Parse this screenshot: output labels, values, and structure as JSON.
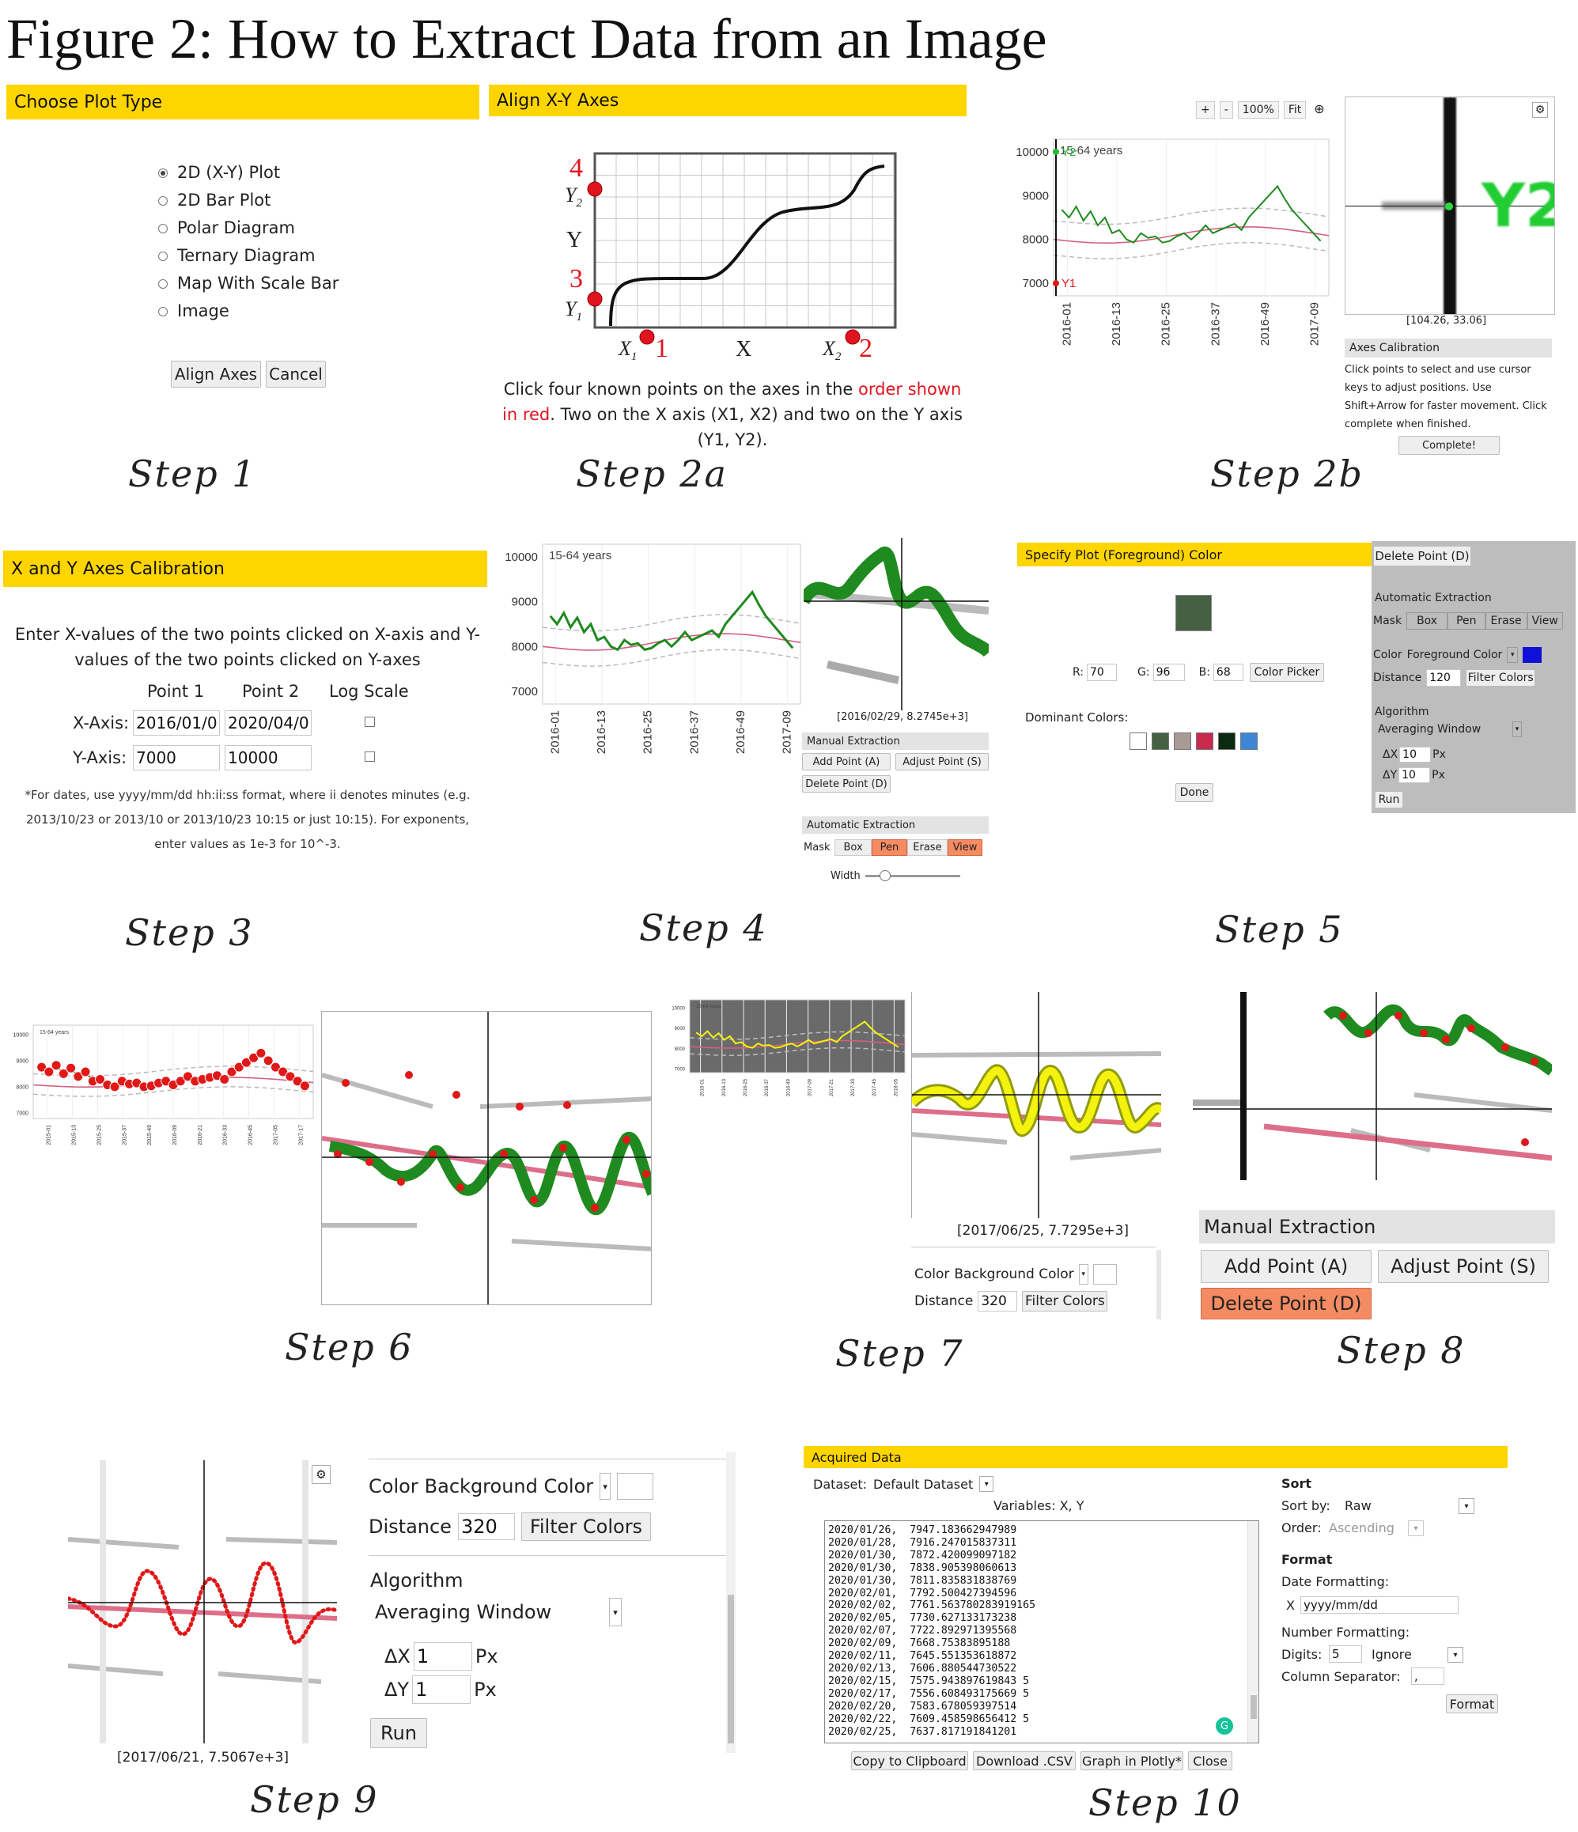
{
  "figure_title": "Figure 2: How to Extract Data from an Image",
  "steps": {
    "s1": "Step 1",
    "s2a": "Step 2a",
    "s2b": "Step 2b",
    "s3": "Step 3",
    "s4": "Step 4",
    "s5": "Step 5",
    "s6": "Step 6",
    "s7": "Step 7",
    "s8": "Step 8",
    "s9": "Step 9",
    "s10": "Step 10"
  },
  "step1": {
    "header": "Choose Plot Type",
    "options": [
      "2D (X-Y) Plot",
      "2D Bar Plot",
      "Polar Diagram",
      "Ternary Diagram",
      "Map With Scale Bar",
      "Image"
    ],
    "selected_index": 0,
    "align_label": "Align Axes",
    "cancel_label": "Cancel"
  },
  "step2a": {
    "header": "Align X-Y Axes",
    "num1": "1",
    "num2": "2",
    "num3": "3",
    "num4": "4",
    "x1": "X1",
    "x2": "X2",
    "x": "X",
    "y": "Y",
    "y1": "Y1",
    "y2": "Y2",
    "instr_a": "Click four known points on the axes in the",
    "instr_red": "order shown in red",
    "instr_b": ". Two on the X axis (X1, X2) and two on the Y axis (Y1, Y2)."
  },
  "step2b": {
    "toolbar": [
      "+",
      "-",
      "100%",
      "Fit"
    ],
    "y_ticks": [
      "10000",
      "9000",
      "8000",
      "7000"
    ],
    "x_ticks": [
      "2016-01",
      "2016-13",
      "2016-25",
      "2016-37",
      "2016-49",
      "2017-09"
    ],
    "series_label": "15-64 years",
    "y1_marker": "Y1",
    "y2_marker": "Y2",
    "zoom_label": "Y2",
    "coords": "[104.26, 33.06]",
    "calib_header": "Axes Calibration",
    "calib_text": "Click points to select and use cursor keys to adjust positions. Use Shift+Arrow for faster movement. Click complete when finished.",
    "complete_label": "Complete!"
  },
  "step3": {
    "header": "X and Y Axes Calibration",
    "instr": "Enter X-values of the two points clicked on X-axis and Y-values of the two points clicked on Y-axes",
    "col_point1": "Point 1",
    "col_point2": "Point 2",
    "col_log": "Log Scale",
    "x_label": "X-Axis:",
    "x1": "2016/01/0",
    "x2": "2020/04/0",
    "y_label": "Y-Axis:",
    "y1": "7000",
    "y2": "10000",
    "note": "*For dates, use yyyy/mm/dd hh:ii:ss format, where ii denotes minutes (e.g. 2013/10/23 or 2013/10 or 2013/10/23 10:15 or just 10:15). For exponents, enter values as 1e-3 for 10^-3."
  },
  "step4": {
    "y_ticks": [
      "10000",
      "9000",
      "8000",
      "7000"
    ],
    "x_ticks": [
      "2016-01",
      "2016-13",
      "2016-25",
      "2016-37",
      "2016-49",
      "2017-09"
    ],
    "series_label": "15-64 years",
    "coords": "[2016/02/29, 8.2745e+3]",
    "manual_header": "Manual Extraction",
    "add_point": "Add Point (A)",
    "adjust_point": "Adjust Point (S)",
    "delete_point": "Delete Point (D)",
    "auto_header": "Automatic Extraction",
    "mask": "Mask",
    "box": "Box",
    "pen": "Pen",
    "erase": "Erase",
    "view": "View",
    "width": "Width"
  },
  "step5": {
    "header": "Specify Plot (Foreground) Color",
    "swatch_color": "#466044",
    "r_label": "R:",
    "r": "70",
    "g_label": "G:",
    "g": "96",
    "b_label": "B:",
    "b": "68",
    "color_picker": "Color Picker",
    "dominant_label": "Dominant Colors:",
    "dominant_colors": [
      "#ffffff",
      "#466044",
      "#a89a95",
      "#c8294c",
      "#0b2a12",
      "#3d86d6"
    ],
    "done_label": "Done",
    "delete_point": "Delete Point (D)",
    "auto_header": "Automatic Extraction",
    "mask": "Mask",
    "box": "Box",
    "pen": "Pen",
    "erase": "Erase",
    "view": "View",
    "color_label": "Color",
    "fg_color_label": "Foreground Color",
    "fg_color": "#1010d8",
    "distance_label": "Distance",
    "distance": "120",
    "filter_colors": "Filter Colors",
    "algorithm_label": "Algorithm",
    "algorithm_value": "Averaging Window",
    "dx_label": "ΔX",
    "dx": "10",
    "dy_label": "ΔY",
    "dy": "10",
    "px": "Px",
    "run_label": "Run"
  },
  "step6": {
    "series_label": "15-64 years"
  },
  "step7": {
    "series_label": "15-64 years",
    "coords": "[2017/06/25, 7.7295e+3]",
    "color_label": "Color",
    "bg_color_label": "Background Color",
    "distance_label": "Distance",
    "distance": "320",
    "filter_colors": "Filter Colors"
  },
  "step8": {
    "manual_header": "Manual Extraction",
    "add_point": "Add Point (A)",
    "adjust_point": "Adjust Point (S)",
    "delete_point": "Delete Point (D)"
  },
  "step9": {
    "coords": "[2017/06/21, 7.5067e+3]",
    "color_label": "Color",
    "bg_color_label": "Background Color",
    "distance_label": "Distance",
    "distance": "320",
    "filter_colors": "Filter Colors",
    "algorithm_label": "Algorithm",
    "algorithm_value": "Averaging Window",
    "dx_label": "ΔX",
    "dx": "1",
    "dy_label": "ΔY",
    "dy": "1",
    "px": "Px",
    "run_label": "Run"
  },
  "step10": {
    "header": "Acquired Data",
    "dataset_label": "Dataset:",
    "dataset_value": "Default Dataset",
    "variables": "Variables: X, Y",
    "rows": [
      "2020/01/26,  7947.183662947989",
      "2020/01/28,  7916.247015837311",
      "2020/01/30,  7872.420099097182",
      "2020/01/30,  7838.905398060613",
      "2020/01/30,  7811.835831838769",
      "2020/02/01,  7792.500427394596",
      "2020/02/02,  7761.563780283919165",
      "2020/02/05,  7730.627133173238",
      "2020/02/07,  7722.892971395568",
      "2020/02/09,  7668.75383895188",
      "2020/02/11,  7645.551353618872",
      "2020/02/13,  7606.880544730522",
      "2020/02/15,  7575.943897619843 5",
      "2020/02/17,  7556.608493175669 5",
      "2020/02/20,  7583.678059397514",
      "2020/02/22,  7609.458598656412 5",
      "2020/02/25,  7637.817191841201"
    ],
    "sort_header": "Sort",
    "sort_by_label": "Sort by:",
    "sort_by": "Raw",
    "order_label": "Order:",
    "order": "Ascending",
    "format_header": "Format",
    "date_fmt_label": "Date Formatting:",
    "date_x": "X",
    "date_fmt": "yyyy/mm/dd",
    "num_fmt_label": "Number Formatting:",
    "digits_label": "Digits:",
    "digits": "5",
    "ignore": "Ignore",
    "col_sep_label": "Column Separator:",
    "col_sep": ",",
    "format_btn": "Format",
    "copy": "Copy to Clipboard",
    "csv": "Download .CSV",
    "plotly": "Graph in Plotly*",
    "close": "Close"
  }
}
